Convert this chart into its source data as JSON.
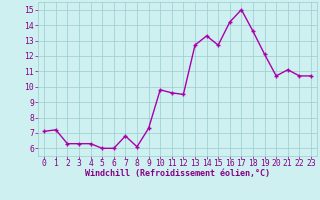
{
  "x": [
    0,
    1,
    2,
    3,
    4,
    5,
    6,
    7,
    8,
    9,
    10,
    11,
    12,
    13,
    14,
    15,
    16,
    17,
    18,
    19,
    20,
    21,
    22,
    23
  ],
  "y": [
    7.1,
    7.2,
    6.3,
    6.3,
    6.3,
    6.0,
    6.0,
    6.8,
    6.1,
    7.3,
    9.8,
    9.6,
    9.5,
    12.7,
    13.3,
    12.7,
    14.2,
    15.0,
    13.6,
    12.1,
    10.7,
    11.1,
    10.7,
    10.7
  ],
  "line_color": "#aa00aa",
  "marker": "+",
  "marker_color": "#aa00aa",
  "xlabel": "Windchill (Refroidissement éolien,°C)",
  "xlim": [
    -0.5,
    23.5
  ],
  "ylim": [
    5.5,
    15.5
  ],
  "yticks": [
    6,
    7,
    8,
    9,
    10,
    11,
    12,
    13,
    14,
    15
  ],
  "xticks": [
    0,
    1,
    2,
    3,
    4,
    5,
    6,
    7,
    8,
    9,
    10,
    11,
    12,
    13,
    14,
    15,
    16,
    17,
    18,
    19,
    20,
    21,
    22,
    23
  ],
  "background_color": "#cff0f0",
  "grid_color": "#99cccc",
  "tick_color": "#880088",
  "label_color": "#880088",
  "xlabel_fontsize": 6.0,
  "tick_fontsize": 5.8,
  "linewidth": 1.0,
  "markersize": 3.5
}
